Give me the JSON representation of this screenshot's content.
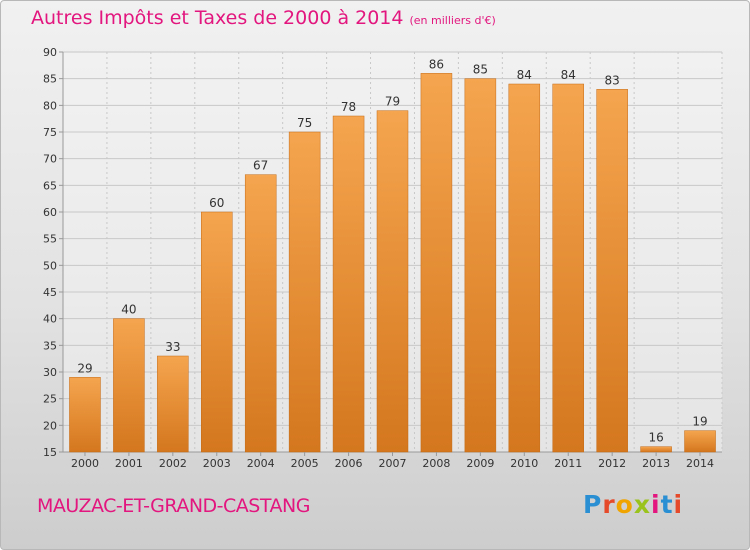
{
  "title": "Autres Impôts et Taxes de 2000 à 2014",
  "title_unit": "(en milliers d'€)",
  "commune": "MAUZAC-ET-GRAND-CASTANG",
  "brand": {
    "letters": [
      "P",
      "r",
      "o",
      "x",
      "i",
      "t",
      "i"
    ],
    "colors": [
      "#2a8fd3",
      "#e54b2a",
      "#f0a400",
      "#9ac31c",
      "#e2167e",
      "#2a8fd3",
      "#e54b2a"
    ]
  },
  "colors": {
    "bar_light": "#f5a54f",
    "bar_dark": "#d4771e",
    "title": "#e2167e",
    "grid": "#c8c8c8"
  },
  "chart_data": {
    "type": "bar",
    "title": "Autres Impôts et Taxes de 2000 à 2014",
    "xlabel": "",
    "ylabel": "",
    "ylim": [
      15,
      90
    ],
    "yticks": [
      15,
      20,
      25,
      30,
      35,
      40,
      45,
      50,
      55,
      60,
      65,
      70,
      75,
      80,
      85,
      90
    ],
    "grid": true,
    "categories": [
      "2000",
      "2001",
      "2002",
      "2003",
      "2004",
      "2005",
      "2006",
      "2007",
      "2008",
      "2009",
      "2010",
      "2011",
      "2012",
      "2013",
      "2014"
    ],
    "values": [
      29,
      40,
      33,
      60,
      67,
      75,
      78,
      79,
      86,
      85,
      84,
      84,
      83,
      16,
      19
    ]
  }
}
